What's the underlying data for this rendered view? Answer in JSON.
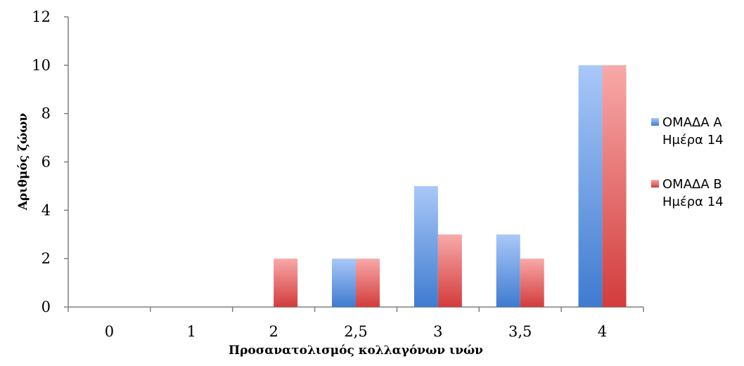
{
  "chart_data": {
    "type": "bar",
    "categories": [
      "0",
      "1",
      "2",
      "2,5",
      "3",
      "3,5",
      "4"
    ],
    "series": [
      {
        "name": "ΟΜΑΔΑ Α Ημέρα 14",
        "name_lines": [
          "ΟΜΑΔΑ Α",
          "Ημέρα 14"
        ],
        "values": [
          0,
          0,
          0,
          2,
          5,
          3,
          10
        ],
        "color": "#5b8fd9"
      },
      {
        "name": "ΟΜΑΔΑ Β Ημέρα 14",
        "name_lines": [
          "ΟΜΑΔΑ Β",
          "Ημέρα 14"
        ],
        "values": [
          0,
          0,
          2,
          2,
          3,
          2,
          10
        ],
        "color": "#e06666"
      }
    ],
    "xlabel": "Προσανατολισμός κολλαγόνων ινών",
    "ylabel": "Αριθμός ζώων",
    "ylim": [
      0,
      12
    ],
    "yticks": [
      0,
      2,
      4,
      6,
      8,
      10,
      12
    ],
    "grid": false,
    "legend_position": "right"
  }
}
